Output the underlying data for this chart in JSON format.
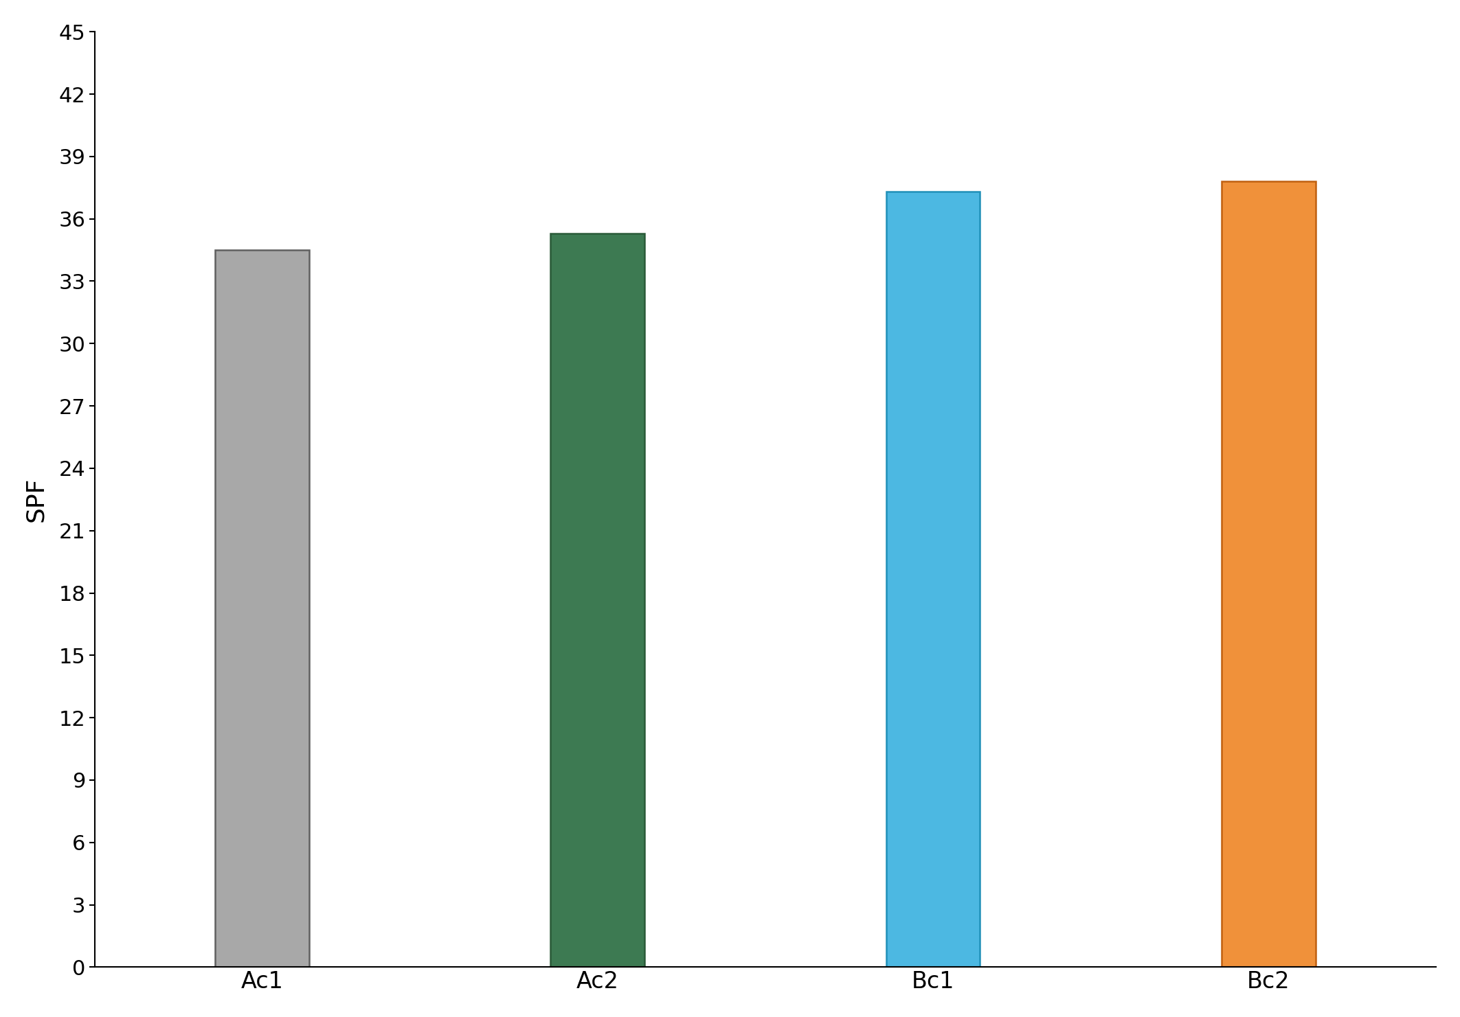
{
  "categories": [
    "Ac1",
    "Ac2",
    "Bc1",
    "Bc2"
  ],
  "values": [
    34.5,
    35.3,
    37.3,
    37.8
  ],
  "bar_colors": [
    "#a8a8a8",
    "#3d7a52",
    "#4cb8e2",
    "#f0913a"
  ],
  "bar_edgecolors": [
    "#606060",
    "#2a5a38",
    "#2090b8",
    "#c06010"
  ],
  "ylabel": "SPF",
  "ylim": [
    0,
    45
  ],
  "yticks": [
    0,
    3,
    6,
    9,
    12,
    15,
    18,
    21,
    24,
    27,
    30,
    33,
    36,
    39,
    42,
    45
  ],
  "background_color": "#ffffff",
  "ylabel_fontsize": 26,
  "tick_fontsize": 22,
  "xtick_fontsize": 24,
  "bar_width": 0.28,
  "bar_positions": [
    0.5,
    1.5,
    2.5,
    3.5
  ],
  "xlim": [
    0,
    4.0
  ]
}
